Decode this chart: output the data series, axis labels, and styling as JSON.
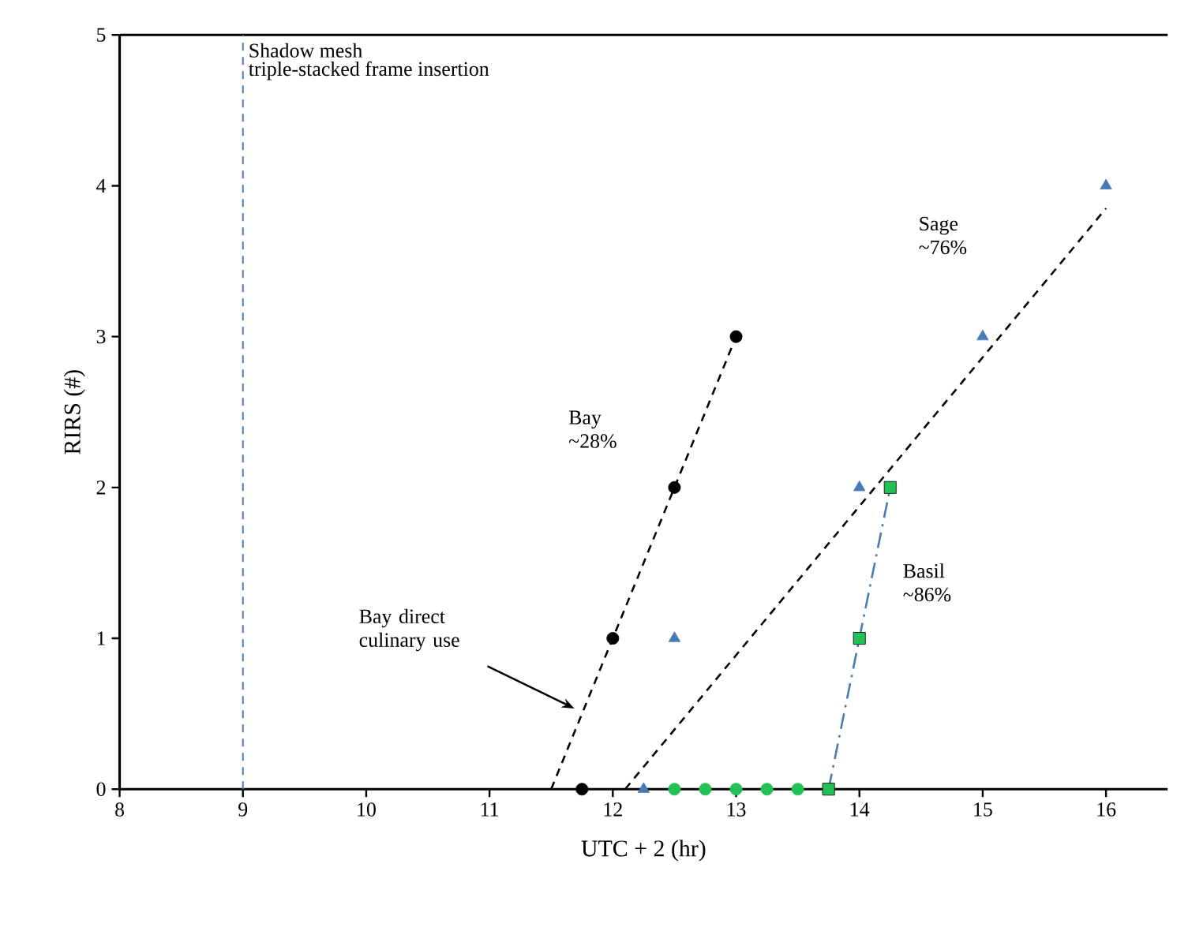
{
  "chart_data": {
    "type": "scatter",
    "xlabel": "UTC + 2 (hr)",
    "ylabel": "RIRS (#)",
    "xlim": [
      8,
      16.5
    ],
    "ylim": [
      0,
      5
    ],
    "xticks": [
      8,
      9,
      10,
      11,
      12,
      13,
      14,
      15,
      16
    ],
    "yticks": [
      0,
      1,
      2,
      3,
      4,
      5
    ],
    "grid": false,
    "series": [
      {
        "type": "line",
        "color": "#000000",
        "marker": "none",
        "line_style": "dashed",
        "x": [
          11.5,
          13
        ],
        "values": [
          0,
          3
        ]
      },
      {
        "type": "line",
        "color": "#000000",
        "marker": "none",
        "line_style": "dashed",
        "x": [
          12.1,
          16
        ],
        "values": [
          0,
          3.85
        ]
      },
      {
        "type": "line",
        "color": "#4a7ab5",
        "marker": "none",
        "line_style": "dashdot",
        "x": [
          13.75,
          14.25
        ],
        "values": [
          0,
          2
        ]
      },
      {
        "color": "#000000",
        "marker": "circle",
        "x": [
          11.75,
          12,
          12.5,
          13
        ],
        "values": [
          0,
          1,
          2,
          3
        ]
      },
      {
        "color": "#4a7ab5",
        "marker": "triangle",
        "x": [
          12.25,
          12.5,
          14,
          15,
          16
        ],
        "values": [
          0,
          1,
          2,
          3,
          4
        ]
      },
      {
        "color": "#22c055",
        "marker": "circle",
        "x": [
          12.5,
          12.75,
          13,
          13.25,
          13.5
        ],
        "values": [
          0,
          0,
          0,
          0,
          0
        ]
      },
      {
        "color": "#22c055",
        "marker": "square",
        "x": [
          13.75,
          14,
          14.25
        ],
        "values": [
          0,
          1,
          2
        ]
      }
    ],
    "ref_lines": [
      {
        "axis": "x",
        "value": 9,
        "label": "Shadow mesh",
        "color": "#4a7ab5",
        "line_style": "dashed"
      }
    ],
    "annotations": [
      "triple-stacked frame insertion",
      "Bay ~28%",
      "Sage ~76%",
      "Basil ~86%",
      "Bay direct culinary use"
    ]
  }
}
